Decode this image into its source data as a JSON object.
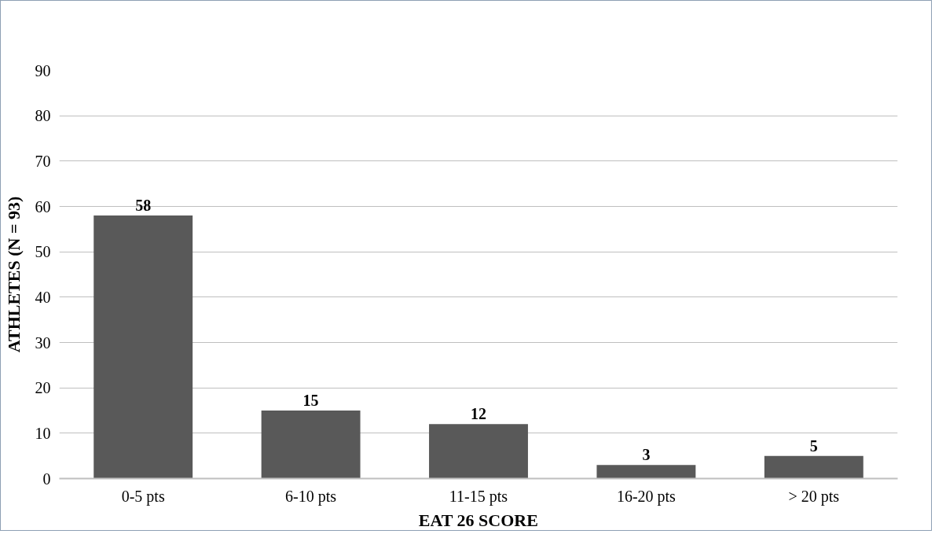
{
  "chart_data": {
    "type": "bar",
    "xlabel": "EAT 26 SCORE",
    "ylabel": "ATHLETES (N = 93)",
    "categories": [
      "0-5 pts",
      "6-10 pts",
      "11-15 pts",
      "16-20 pts",
      "> 20 pts"
    ],
    "values": [
      58,
      15,
      12,
      3,
      5
    ],
    "color": "#595959",
    "ylim": [
      0,
      90
    ],
    "yticks": [
      0,
      10,
      20,
      30,
      40,
      50,
      60,
      70,
      80,
      90
    ],
    "grid": "y",
    "data_labels": true
  }
}
